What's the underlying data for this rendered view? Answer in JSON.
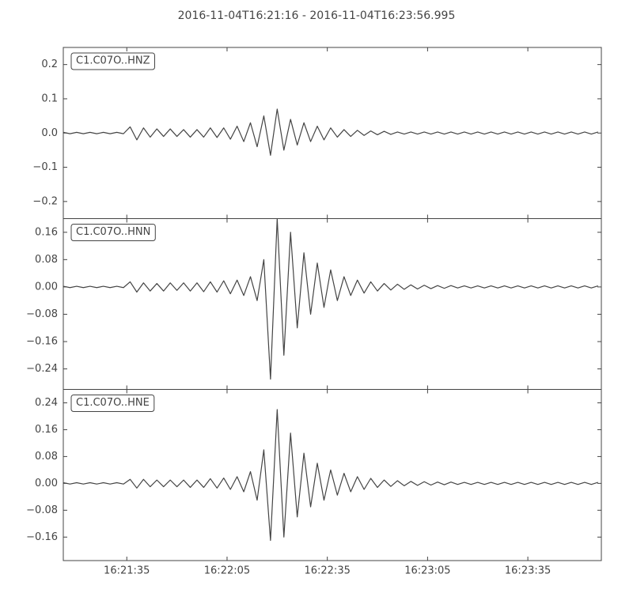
{
  "title": "2016-11-04T16:21:16  -  2016-11-04T16:23:56.995",
  "chart_data": [
    {
      "type": "line",
      "series": [
        {
          "name": "C1.C07O..HNZ",
          "color": "#444444",
          "values": [
            0.002,
            -0.002,
            0.002,
            -0.002,
            0.002,
            -0.002,
            0.002,
            -0.002,
            0.002,
            -0.002,
            0.018,
            -0.02,
            0.015,
            -0.012,
            0.012,
            -0.01,
            0.012,
            -0.01,
            0.01,
            -0.012,
            0.01,
            -0.012,
            0.015,
            -0.013,
            0.015,
            -0.018,
            0.02,
            -0.025,
            0.03,
            -0.04,
            0.05,
            -0.065,
            0.07,
            -0.05,
            0.04,
            -0.035,
            0.03,
            -0.025,
            0.02,
            -0.02,
            0.015,
            -0.012,
            0.01,
            -0.01,
            0.008,
            -0.007,
            0.006,
            -0.005,
            0.005,
            -0.004,
            0.003,
            -0.003,
            0.003,
            -0.003,
            0.003,
            -0.003,
            0.003,
            -0.003,
            0.003,
            -0.003,
            0.003,
            -0.003,
            0.003,
            -0.003,
            0.003,
            -0.003,
            0.003,
            -0.003,
            0.003,
            -0.003,
            0.003,
            -0.003,
            0.003,
            -0.003,
            0.003,
            -0.003,
            0.003,
            -0.003,
            0.003,
            -0.003,
            0.003
          ]
        }
      ],
      "x": [
        58876,
        58878,
        58880,
        58882,
        58884,
        58886,
        58888,
        58890,
        58892,
        58894,
        58896,
        58898,
        58900,
        58902,
        58904,
        58906,
        58908,
        58910,
        58912,
        58914,
        58916,
        58918,
        58920,
        58922,
        58924,
        58926,
        58928,
        58930,
        58932,
        58934,
        58936,
        58938,
        58940,
        58942,
        58944,
        58946,
        58948,
        58950,
        58952,
        58954,
        58956,
        58958,
        58960,
        58962,
        58964,
        58966,
        58968,
        58970,
        58972,
        58974,
        58976,
        58978,
        58980,
        58982,
        58984,
        58986,
        58988,
        58990,
        58992,
        58994,
        58996,
        58998,
        59000,
        59002,
        59004,
        59006,
        59008,
        59010,
        59012,
        59014,
        59016,
        59018,
        59020,
        59022,
        59024,
        59026,
        59028,
        59030,
        59032,
        59034,
        59036
      ],
      "xlim": [
        58876,
        59036.995
      ],
      "ylim": [
        -0.25,
        0.25
      ],
      "yticks": [
        {
          "value": -0.2,
          "label": "−0.2"
        },
        {
          "value": -0.1,
          "label": "−0.1"
        },
        {
          "value": 0,
          "label": "0.0"
        },
        0.1,
        0.2
      ]
    },
    {
      "type": "line",
      "series": [
        {
          "name": "C1.C07O..HNN",
          "color": "#444444",
          "values": [
            0.002,
            -0.002,
            0.002,
            -0.002,
            0.002,
            -0.002,
            0.002,
            -0.002,
            0.002,
            -0.002,
            0.015,
            -0.015,
            0.012,
            -0.012,
            0.01,
            -0.012,
            0.012,
            -0.01,
            0.012,
            -0.012,
            0.012,
            -0.014,
            0.015,
            -0.015,
            0.018,
            -0.02,
            0.02,
            -0.025,
            0.03,
            -0.04,
            0.08,
            -0.27,
            0.2,
            -0.2,
            0.16,
            -0.12,
            0.1,
            -0.08,
            0.07,
            -0.06,
            0.05,
            -0.04,
            0.03,
            -0.025,
            0.02,
            -0.018,
            0.015,
            -0.012,
            0.01,
            -0.009,
            0.008,
            -0.007,
            0.006,
            -0.006,
            0.005,
            -0.005,
            0.004,
            -0.004,
            0.004,
            -0.003,
            0.003,
            -0.003,
            0.003,
            -0.003,
            0.003,
            -0.003,
            0.003,
            -0.003,
            0.003,
            -0.003,
            0.003,
            -0.003,
            0.003,
            -0.003,
            0.003,
            -0.003,
            0.003,
            -0.003,
            0.003,
            -0.003,
            0.003
          ]
        }
      ],
      "x": [
        58876,
        58878,
        58880,
        58882,
        58884,
        58886,
        58888,
        58890,
        58892,
        58894,
        58896,
        58898,
        58900,
        58902,
        58904,
        58906,
        58908,
        58910,
        58912,
        58914,
        58916,
        58918,
        58920,
        58922,
        58924,
        58926,
        58928,
        58930,
        58932,
        58934,
        58936,
        58938,
        58940,
        58942,
        58944,
        58946,
        58948,
        58950,
        58952,
        58954,
        58956,
        58958,
        58960,
        58962,
        58964,
        58966,
        58968,
        58970,
        58972,
        58974,
        58976,
        58978,
        58980,
        58982,
        58984,
        58986,
        58988,
        58990,
        58992,
        58994,
        58996,
        58998,
        59000,
        59002,
        59004,
        59006,
        59008,
        59010,
        59012,
        59014,
        59016,
        59018,
        59020,
        59022,
        59024,
        59026,
        59028,
        59030,
        59032,
        59034,
        59036
      ],
      "xlim": [
        58876,
        59036.995
      ],
      "ylim": [
        -0.3,
        0.2
      ],
      "yticks": [
        {
          "value": -0.24,
          "label": "−0.24"
        },
        {
          "value": -0.16,
          "label": "−0.16"
        },
        {
          "value": -0.08,
          "label": "−0.08"
        },
        {
          "value": 0,
          "label": "0.00"
        },
        0.08,
        0.16
      ]
    },
    {
      "type": "line",
      "series": [
        {
          "name": "C1.C07O..HNE",
          "color": "#444444",
          "values": [
            0.002,
            -0.002,
            0.002,
            -0.002,
            0.002,
            -0.002,
            0.002,
            -0.002,
            0.002,
            -0.002,
            0.012,
            -0.014,
            0.012,
            -0.01,
            0.01,
            -0.01,
            0.01,
            -0.01,
            0.01,
            -0.012,
            0.01,
            -0.012,
            0.014,
            -0.014,
            0.016,
            -0.018,
            0.02,
            -0.025,
            0.035,
            -0.05,
            0.1,
            -0.17,
            0.22,
            -0.16,
            0.15,
            -0.1,
            0.09,
            -0.07,
            0.06,
            -0.05,
            0.04,
            -0.035,
            0.03,
            -0.025,
            0.02,
            -0.018,
            0.015,
            -0.012,
            0.01,
            -0.009,
            0.008,
            -0.007,
            0.006,
            -0.006,
            0.005,
            -0.005,
            0.004,
            -0.004,
            0.004,
            -0.003,
            0.003,
            -0.003,
            0.003,
            -0.003,
            0.003,
            -0.003,
            0.003,
            -0.003,
            0.003,
            -0.003,
            0.003,
            -0.003,
            0.003,
            -0.003,
            0.003,
            -0.003,
            0.003,
            -0.003,
            0.003,
            -0.003,
            0.003
          ]
        }
      ],
      "x": [
        58876,
        58878,
        58880,
        58882,
        58884,
        58886,
        58888,
        58890,
        58892,
        58894,
        58896,
        58898,
        58900,
        58902,
        58904,
        58906,
        58908,
        58910,
        58912,
        58914,
        58916,
        58918,
        58920,
        58922,
        58924,
        58926,
        58928,
        58930,
        58932,
        58934,
        58936,
        58938,
        58940,
        58942,
        58944,
        58946,
        58948,
        58950,
        58952,
        58954,
        58956,
        58958,
        58960,
        58962,
        58964,
        58966,
        58968,
        58970,
        58972,
        58974,
        58976,
        58978,
        58980,
        58982,
        58984,
        58986,
        58988,
        58990,
        58992,
        58994,
        58996,
        58998,
        59000,
        59002,
        59004,
        59006,
        59008,
        59010,
        59012,
        59014,
        59016,
        59018,
        59020,
        59022,
        59024,
        59026,
        59028,
        59030,
        59032,
        59034,
        59036
      ],
      "xlim": [
        58876,
        59036.995
      ],
      "ylim": [
        -0.23,
        0.28
      ],
      "yticks": [
        {
          "value": -0.16,
          "label": "−0.16"
        },
        {
          "value": -0.08,
          "label": "−0.08"
        },
        {
          "value": 0,
          "label": "0.00"
        },
        0.08,
        0.16,
        0.24
      ],
      "xticks": [
        {
          "value": 58895,
          "label": "16:21:35"
        },
        {
          "value": 58925,
          "label": "16:22:05"
        },
        {
          "value": 58955,
          "label": "16:22:35"
        },
        {
          "value": 58985,
          "label": "16:23:05"
        },
        {
          "value": 59015,
          "label": "16:23:35"
        }
      ]
    }
  ]
}
